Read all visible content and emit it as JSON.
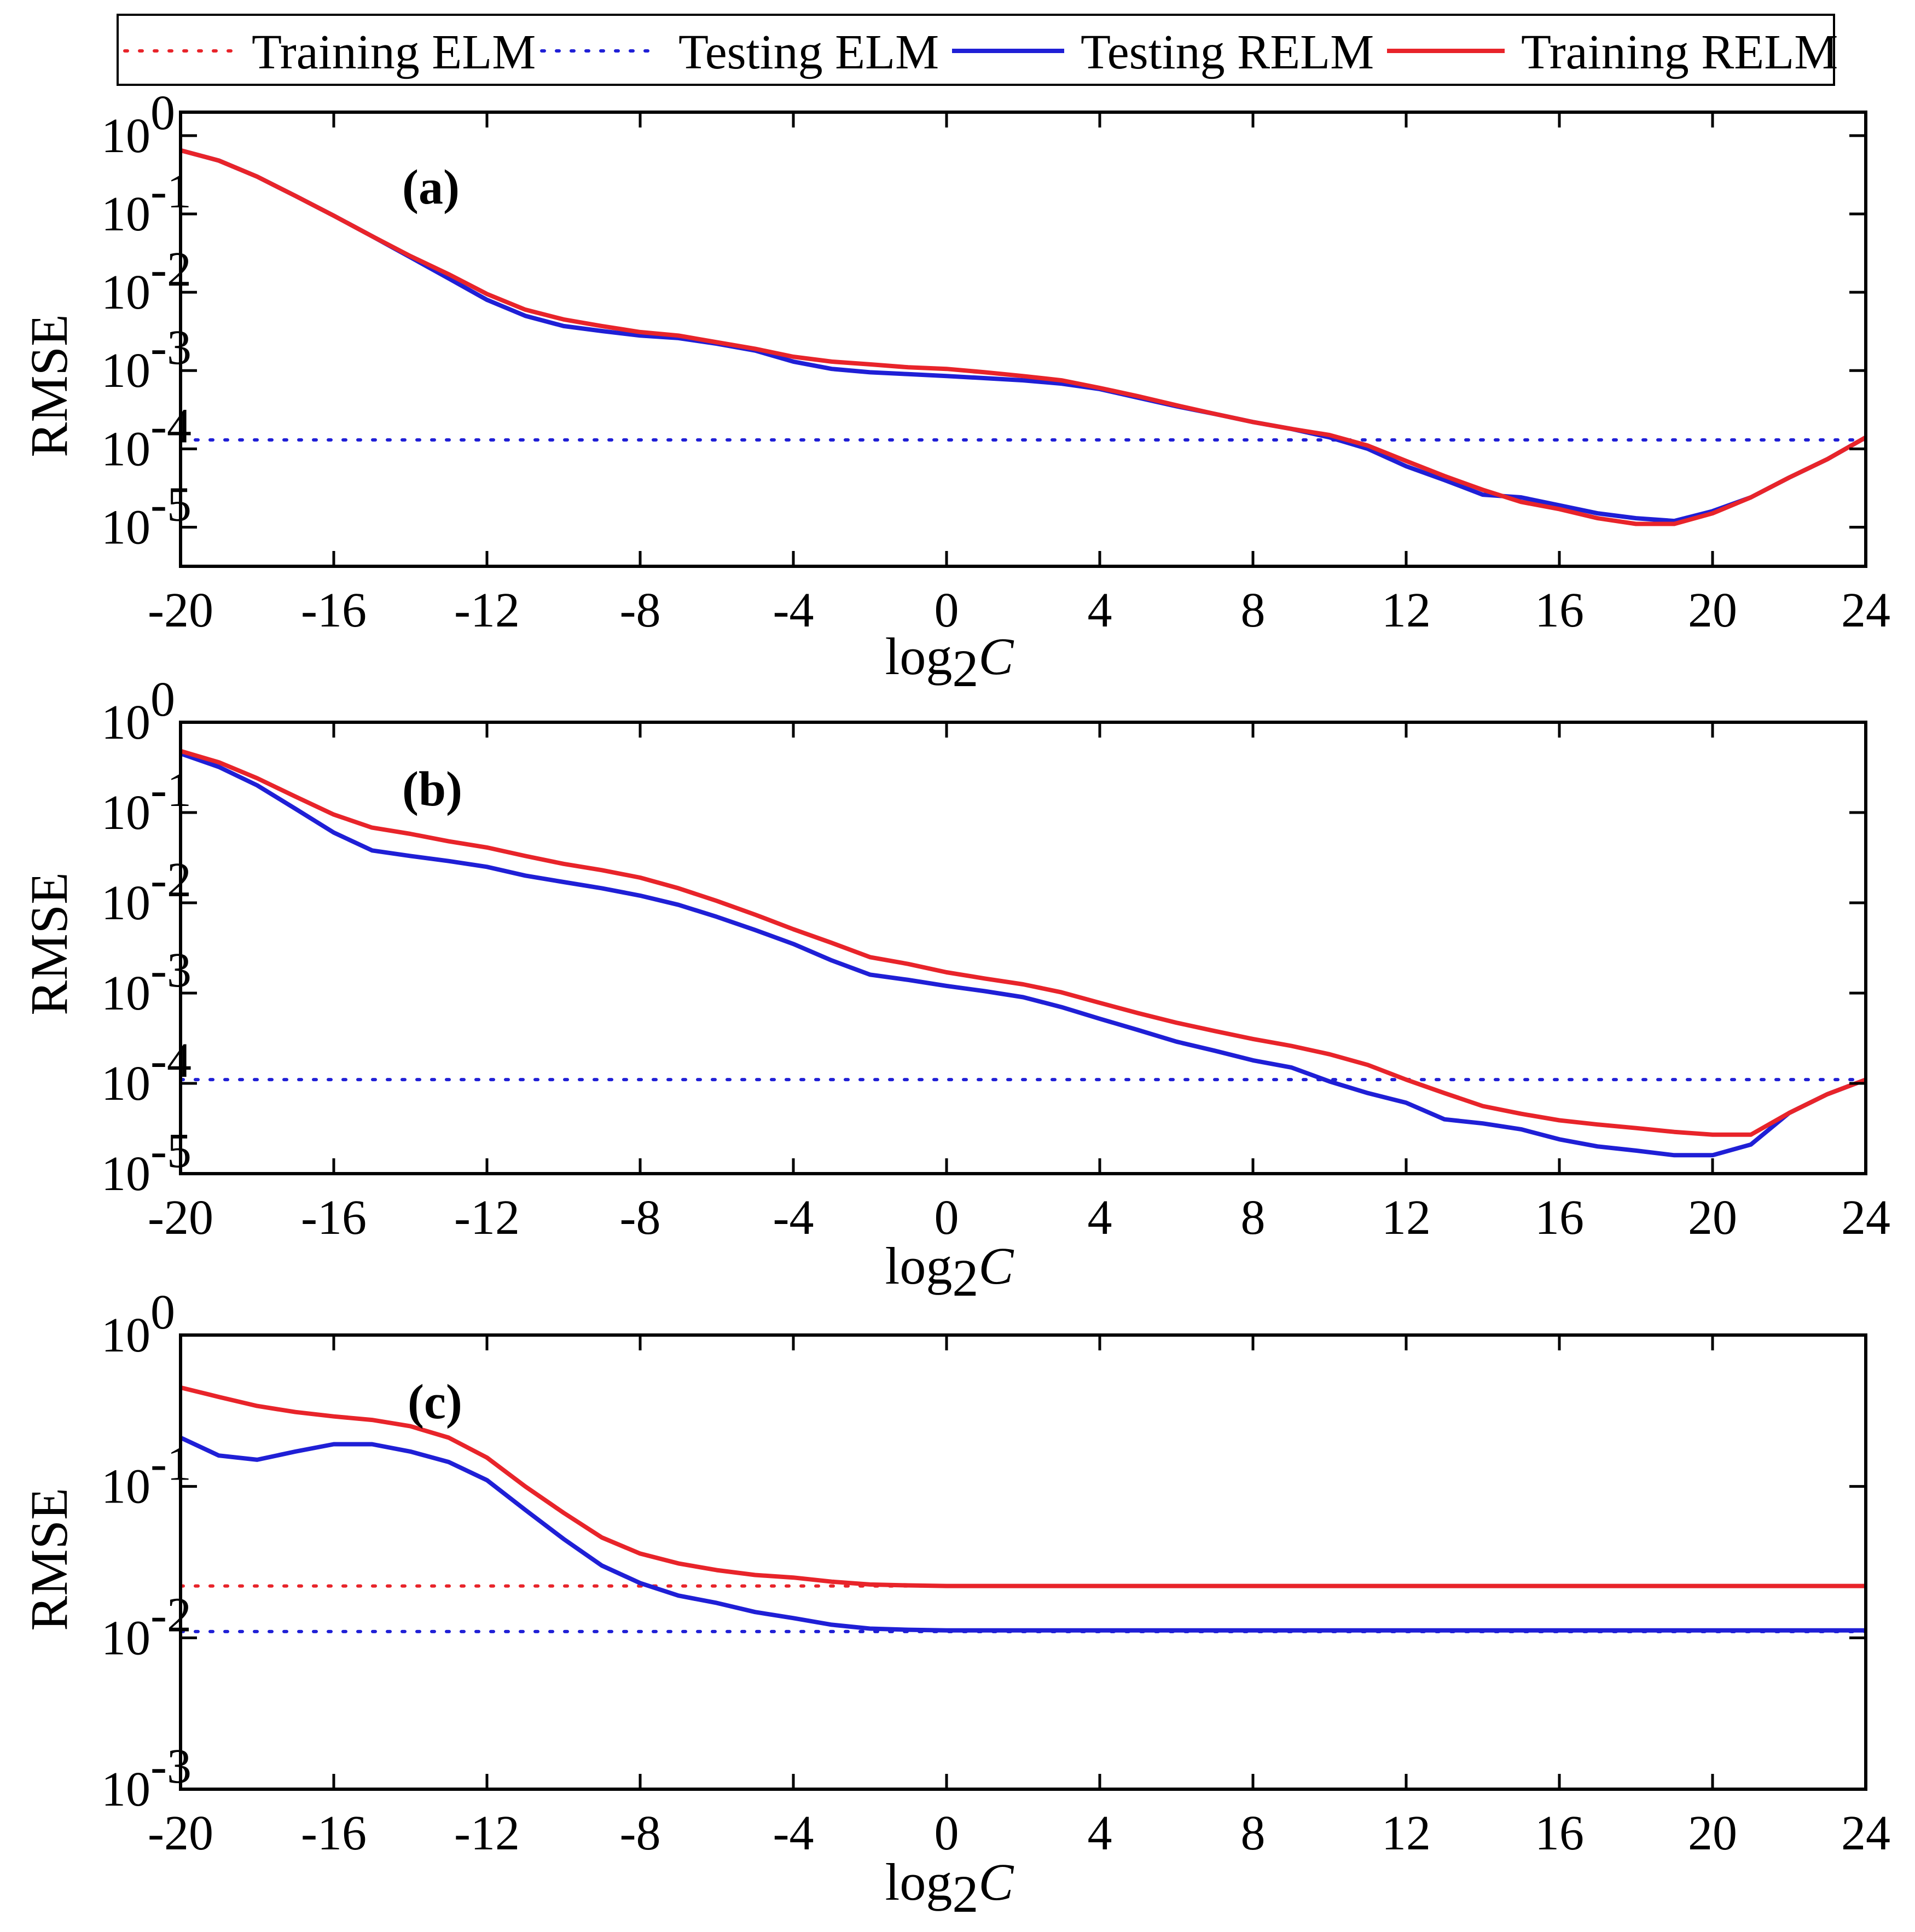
{
  "legend": {
    "items": [
      {
        "label": "Training ELM",
        "color": "#e8242a",
        "style": "dotted"
      },
      {
        "label": "Testing ELM",
        "color": "#1f1fd6",
        "style": "dotted"
      },
      {
        "label": "Testing RELM",
        "color": "#1f1fd6",
        "style": "solid"
      },
      {
        "label": "Training RELM",
        "color": "#e8242a",
        "style": "solid"
      }
    ]
  },
  "colors": {
    "red": "#e8242a",
    "blue": "#1f1fd6"
  },
  "chart_data": [
    {
      "type": "line",
      "title": "(a)",
      "xlabel": "log2C",
      "xlabel_parts": [
        "log",
        "2",
        "C"
      ],
      "ylabel": "RMSE",
      "yscale": "log",
      "xlim": [
        -20,
        24
      ],
      "ylim_exp": [
        -5.5,
        0.3
      ],
      "xticks": [
        -20,
        -16,
        -12,
        -8,
        -4,
        0,
        4,
        8,
        12,
        16,
        20,
        24
      ],
      "xtick_labels": [
        "-20",
        "-16",
        "-12",
        "-8",
        "-4",
        "0",
        "4",
        "8",
        "12",
        "16",
        "20",
        "24"
      ],
      "ytick_exps": [
        0,
        -1,
        -2,
        -3,
        -4,
        -5
      ],
      "ytick_labels": [
        {
          "base": "10",
          "exp": "0"
        },
        {
          "base": "10",
          "exp": "-1"
        },
        {
          "base": "10",
          "exp": "-2"
        },
        {
          "base": "10",
          "exp": "-3"
        },
        {
          "base": "10",
          "exp": "-4"
        },
        {
          "base": "10",
          "exp": "-5"
        }
      ],
      "series": [
        {
          "name": "Training ELM",
          "value": null
        },
        {
          "name": "Testing ELM",
          "value": 0.00013
        },
        {
          "name": "Testing RELM",
          "x": [
            -20,
            -19,
            -18,
            -17,
            -16,
            -15,
            -14,
            -13,
            -12,
            -11,
            -10,
            -9,
            -8,
            -7,
            -6,
            -5,
            -4,
            -3,
            -2,
            -1,
            0,
            1,
            2,
            3,
            4,
            5,
            6,
            7,
            8,
            9,
            10,
            11,
            12,
            13,
            14,
            15,
            16,
            17,
            18,
            19,
            20,
            21,
            22,
            23,
            24
          ],
          "y": [
            0.65,
            0.48,
            0.3,
            0.17,
            0.095,
            0.052,
            0.028,
            0.015,
            0.008,
            0.005,
            0.0037,
            0.0032,
            0.0028,
            0.0026,
            0.0022,
            0.0018,
            0.0013,
            0.00105,
            0.00095,
            0.0009,
            0.00085,
            0.0008,
            0.00075,
            0.00068,
            0.00058,
            0.00045,
            0.00035,
            0.00028,
            0.00022,
            0.00018,
            0.00014,
            0.0001,
            6e-05,
            4e-05,
            2.6e-05,
            2.4e-05,
            1.9e-05,
            1.5e-05,
            1.3e-05,
            1.2e-05,
            1.6e-05,
            2.4e-05,
            4.3e-05,
            7.4e-05,
            0.00014
          ]
        },
        {
          "name": "Training RELM",
          "x": [
            -20,
            -19,
            -18,
            -17,
            -16,
            -15,
            -14,
            -13,
            -12,
            -11,
            -10,
            -9,
            -8,
            -7,
            -6,
            -5,
            -4,
            -3,
            -2,
            -1,
            0,
            1,
            2,
            3,
            4,
            5,
            6,
            7,
            8,
            9,
            10,
            11,
            12,
            13,
            14,
            15,
            16,
            17,
            18,
            19,
            20,
            21,
            22,
            23,
            24
          ],
          "y": [
            0.65,
            0.48,
            0.3,
            0.17,
            0.095,
            0.052,
            0.029,
            0.017,
            0.0095,
            0.006,
            0.0045,
            0.0037,
            0.0031,
            0.0028,
            0.0023,
            0.0019,
            0.0015,
            0.0013,
            0.0012,
            0.0011,
            0.00105,
            0.00095,
            0.00085,
            0.00075,
            0.0006,
            0.00047,
            0.00036,
            0.00028,
            0.00022,
            0.00018,
            0.00015,
            0.00011,
            7e-05,
            4.5e-05,
            3e-05,
            2.1e-05,
            1.7e-05,
            1.3e-05,
            1.1e-05,
            1.1e-05,
            1.5e-05,
            2.4e-05,
            4.3e-05,
            7.4e-05,
            0.00014
          ]
        }
      ]
    },
    {
      "type": "line",
      "title": "(b)",
      "xlabel": "log2C",
      "xlabel_parts": [
        "log",
        "2",
        "C"
      ],
      "ylabel": "RMSE",
      "yscale": "log",
      "xlim": [
        -20,
        24
      ],
      "ylim_exp": [
        -5,
        0
      ],
      "xticks": [
        -20,
        -16,
        -12,
        -8,
        -4,
        0,
        4,
        8,
        12,
        16,
        20,
        24
      ],
      "xtick_labels": [
        "-20",
        "-16",
        "-12",
        "-8",
        "-4",
        "0",
        "4",
        "8",
        "12",
        "16",
        "20",
        "24"
      ],
      "ytick_exps": [
        0,
        -1,
        -2,
        -3,
        -4,
        -5
      ],
      "ytick_labels": [
        {
          "base": "10",
          "exp": "0"
        },
        {
          "base": "10",
          "exp": "-1"
        },
        {
          "base": "10",
          "exp": "-2"
        },
        {
          "base": "10",
          "exp": "-3"
        },
        {
          "base": "10",
          "exp": "-4"
        },
        {
          "base": "10",
          "exp": "-5"
        }
      ],
      "series": [
        {
          "name": "Training ELM",
          "value": null
        },
        {
          "name": "Testing ELM",
          "value": 0.00011
        },
        {
          "name": "Testing RELM",
          "x": [
            -20,
            -19,
            -18,
            -17,
            -16,
            -15,
            -14,
            -13,
            -12,
            -11,
            -10,
            -9,
            -8,
            -7,
            -6,
            -5,
            -4,
            -3,
            -2,
            -1,
            0,
            1,
            2,
            3,
            4,
            5,
            6,
            7,
            8,
            9,
            10,
            11,
            12,
            13,
            14,
            15,
            16,
            17,
            18,
            19,
            20,
            21,
            22,
            23,
            24
          ],
          "y": [
            0.45,
            0.32,
            0.2,
            0.11,
            0.06,
            0.038,
            0.033,
            0.029,
            0.025,
            0.02,
            0.017,
            0.0145,
            0.012,
            0.0095,
            0.007,
            0.005,
            0.0035,
            0.0023,
            0.0016,
            0.0014,
            0.0012,
            0.00105,
            0.0009,
            0.0007,
            0.00052,
            0.00039,
            0.00029,
            0.00023,
            0.00018,
            0.00015,
            0.000105,
            7.8e-05,
            6.1e-05,
            4e-05,
            3.6e-05,
            3.1e-05,
            2.4e-05,
            2e-05,
            1.8e-05,
            1.6e-05,
            1.6e-05,
            2.1e-05,
            4.7e-05,
            7.6e-05,
            0.00011
          ]
        },
        {
          "name": "Training RELM",
          "x": [
            -20,
            -19,
            -18,
            -17,
            -16,
            -15,
            -14,
            -13,
            -12,
            -11,
            -10,
            -9,
            -8,
            -7,
            -6,
            -5,
            -4,
            -3,
            -2,
            -1,
            0,
            1,
            2,
            3,
            4,
            5,
            6,
            7,
            8,
            9,
            10,
            11,
            12,
            13,
            14,
            15,
            16,
            17,
            18,
            19,
            20,
            21,
            22,
            23,
            24
          ],
          "y": [
            0.48,
            0.36,
            0.24,
            0.15,
            0.095,
            0.068,
            0.058,
            0.048,
            0.041,
            0.033,
            0.027,
            0.023,
            0.019,
            0.0145,
            0.0105,
            0.0074,
            0.0051,
            0.0036,
            0.0025,
            0.0021,
            0.0017,
            0.00145,
            0.00125,
            0.00102,
            0.00078,
            0.0006,
            0.00047,
            0.00038,
            0.00031,
            0.00026,
            0.00021,
            0.00016,
            0.00011,
            7.8e-05,
            5.6e-05,
            4.6e-05,
            3.9e-05,
            3.5e-05,
            3.2e-05,
            2.9e-05,
            2.7e-05,
            2.7e-05,
            4.7e-05,
            7.6e-05,
            0.00011
          ]
        }
      ]
    },
    {
      "type": "line",
      "title": "(c)",
      "xlabel": "log2C",
      "xlabel_parts": [
        "log",
        "2",
        "C"
      ],
      "ylabel": "RMSE",
      "yscale": "log",
      "xlim": [
        -20,
        24
      ],
      "ylim_exp": [
        -3,
        0
      ],
      "xticks": [
        -20,
        -16,
        -12,
        -8,
        -4,
        0,
        4,
        8,
        12,
        16,
        20,
        24
      ],
      "xtick_labels": [
        "-20",
        "-16",
        "-12",
        "-8",
        "-4",
        "0",
        "4",
        "8",
        "12",
        "16",
        "20",
        "24"
      ],
      "ytick_exps": [
        0,
        -1,
        -2,
        -3
      ],
      "ytick_labels": [
        {
          "base": "10",
          "exp": "0"
        },
        {
          "base": "10",
          "exp": "-1"
        },
        {
          "base": "10",
          "exp": "-2"
        },
        {
          "base": "10",
          "exp": "-3"
        }
      ],
      "series": [
        {
          "name": "Training ELM",
          "value": 0.022
        },
        {
          "name": "Testing ELM",
          "value": 0.011
        },
        {
          "name": "Testing RELM",
          "x": [
            -20,
            -19,
            -18,
            -17,
            -16,
            -15,
            -14,
            -13,
            -12,
            -11,
            -10,
            -9,
            -8,
            -7,
            -6,
            -5,
            -4,
            -3,
            -2,
            -1,
            0,
            1,
            2,
            3,
            4,
            5,
            6,
            7,
            8,
            9,
            10,
            11,
            12,
            13,
            14,
            15,
            16,
            17,
            18,
            19,
            20,
            21,
            22,
            23,
            24
          ],
          "y": [
            0.21,
            0.16,
            0.15,
            0.17,
            0.19,
            0.19,
            0.17,
            0.145,
            0.11,
            0.07,
            0.045,
            0.03,
            0.023,
            0.019,
            0.017,
            0.0148,
            0.0135,
            0.0122,
            0.0115,
            0.0113,
            0.0112,
            0.0112,
            0.0112,
            0.0112,
            0.0112,
            0.0112,
            0.0112,
            0.0112,
            0.0112,
            0.0112,
            0.0112,
            0.0112,
            0.0112,
            0.0112,
            0.0112,
            0.0112,
            0.0112,
            0.0112,
            0.0112,
            0.0112,
            0.0112,
            0.0112,
            0.0112,
            0.0112,
            0.0112
          ]
        },
        {
          "name": "Training RELM",
          "x": [
            -20,
            -19,
            -18,
            -17,
            -16,
            -15,
            -14,
            -13,
            -12,
            -11,
            -10,
            -9,
            -8,
            -7,
            -6,
            -5,
            -4,
            -3,
            -2,
            -1,
            0,
            1,
            2,
            3,
            4,
            5,
            6,
            7,
            8,
            9,
            10,
            11,
            12,
            13,
            14,
            15,
            16,
            17,
            18,
            19,
            20,
            21,
            22,
            23,
            24
          ],
          "y": [
            0.45,
            0.39,
            0.34,
            0.31,
            0.29,
            0.275,
            0.25,
            0.21,
            0.155,
            0.1,
            0.067,
            0.046,
            0.036,
            0.031,
            0.028,
            0.026,
            0.025,
            0.0235,
            0.0225,
            0.0222,
            0.022,
            0.022,
            0.022,
            0.022,
            0.022,
            0.022,
            0.022,
            0.022,
            0.022,
            0.022,
            0.022,
            0.022,
            0.022,
            0.022,
            0.022,
            0.022,
            0.022,
            0.022,
            0.022,
            0.022,
            0.022,
            0.022,
            0.022,
            0.022,
            0.022
          ]
        }
      ]
    }
  ]
}
